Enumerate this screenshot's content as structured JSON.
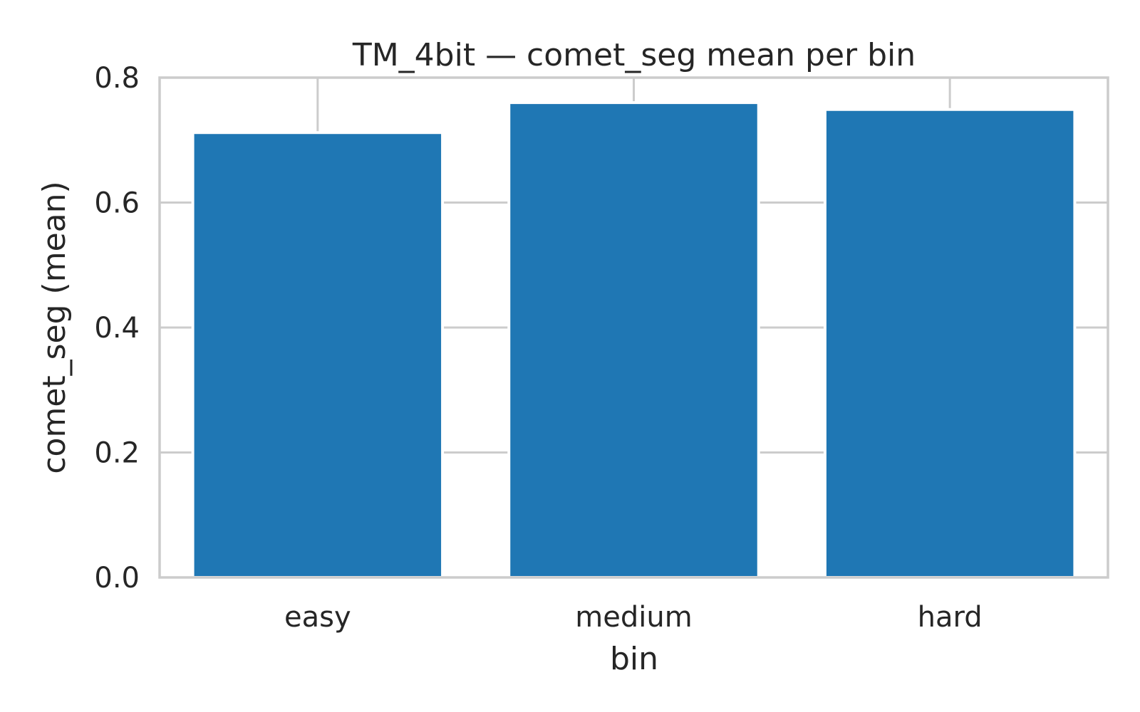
{
  "chart_data": {
    "type": "bar",
    "title": "TM_4bit — comet_seg mean per bin",
    "xlabel": "bin",
    "ylabel": "comet_seg (mean)",
    "categories": [
      "easy",
      "medium",
      "hard"
    ],
    "values": [
      0.712,
      0.76,
      0.749
    ],
    "ylim": [
      0,
      0.8
    ],
    "yticks": [
      "0.0",
      "0.2",
      "0.4",
      "0.6",
      "0.8"
    ],
    "ytick_values": [
      0,
      0.2,
      0.4,
      0.6,
      0.8
    ],
    "grid": true,
    "bar_color": "#1f77b4",
    "grid_color": "#cccccc",
    "text_color": "#262626"
  }
}
